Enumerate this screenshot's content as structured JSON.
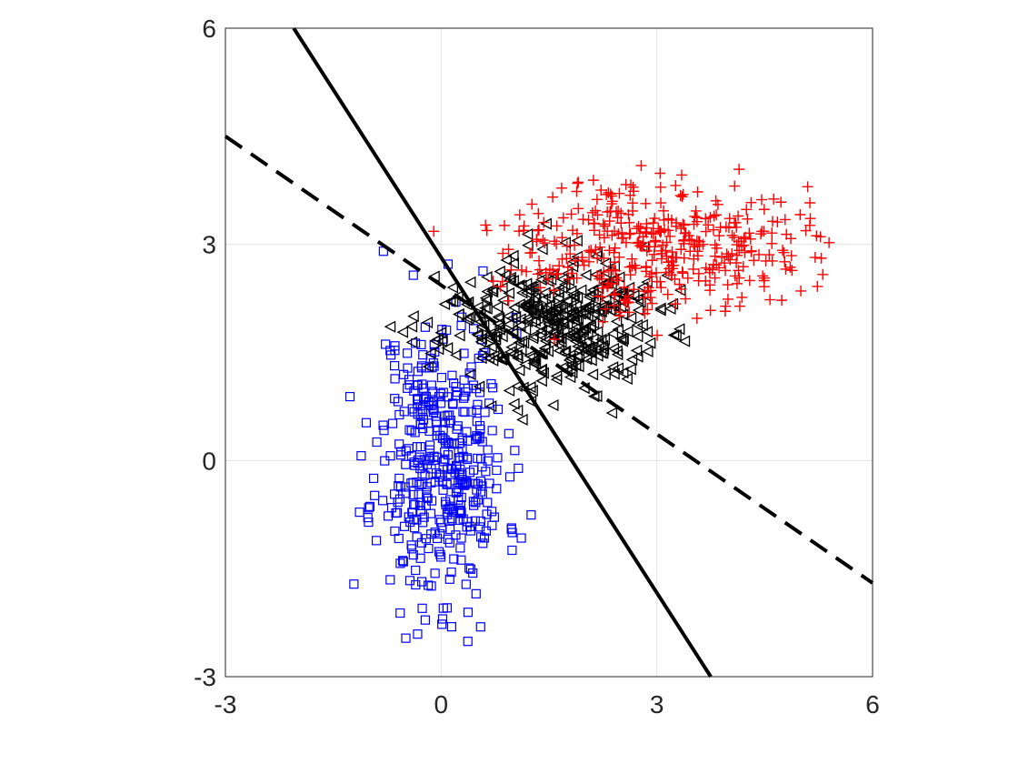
{
  "chart_data": {
    "type": "scatter",
    "title": "",
    "xlabel": "",
    "ylabel": "",
    "xlim": [
      -3,
      6
    ],
    "ylim": [
      -3,
      6
    ],
    "xticks": [
      "-3",
      "0",
      "3",
      "6"
    ],
    "yticks": [
      "-3",
      "0",
      "3",
      "6"
    ],
    "grid": true,
    "legend": "none",
    "series": [
      {
        "marker": "square",
        "color": "#0000ff",
        "center": [
          0.0,
          0.0
        ],
        "spread": [
          0.45,
          1.0
        ],
        "count": 420,
        "seed": 11
      },
      {
        "marker": "triangle-left",
        "color": "#000000",
        "center": [
          1.5,
          1.9
        ],
        "spread": [
          0.75,
          0.45
        ],
        "count": 420,
        "seed": 23
      },
      {
        "marker": "plus",
        "color": "#ff0000",
        "center": [
          3.0,
          3.0
        ],
        "spread": [
          1.0,
          0.45
        ],
        "count": 420,
        "seed": 37
      }
    ],
    "lines": [
      {
        "style": "solid",
        "color": "#000000",
        "points": [
          [
            -2.05,
            6.0
          ],
          [
            3.75,
            -3.0
          ]
        ]
      },
      {
        "style": "dashed",
        "color": "#000000",
        "points": [
          [
            -3.0,
            4.5
          ],
          [
            6.0,
            -1.7
          ]
        ]
      }
    ]
  }
}
